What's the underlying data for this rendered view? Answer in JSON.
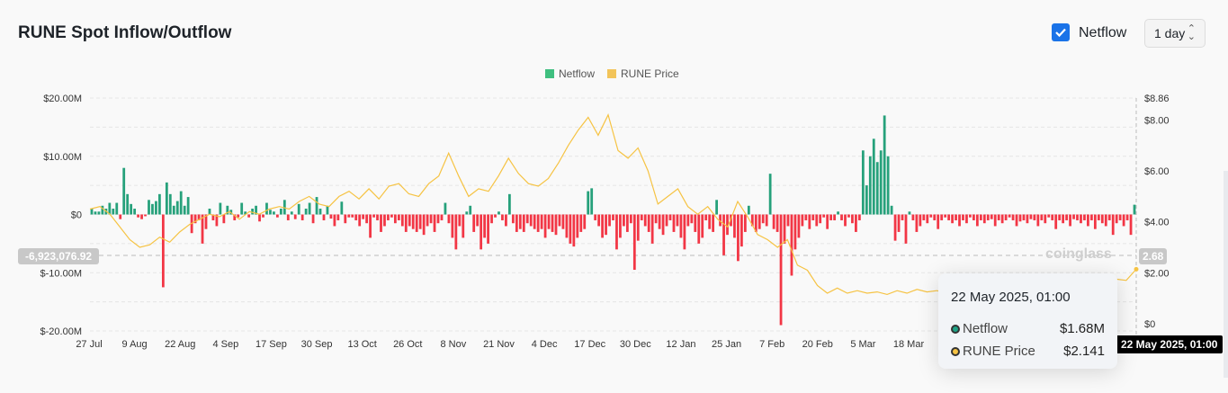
{
  "header": {
    "title": "RUNE Spot Inflow/Outflow",
    "netflow_checkbox_label": "Netflow",
    "interval": "1 day"
  },
  "watermark": "coinglass",
  "crosshair": {
    "left_value": "-6,923,076.92",
    "right_value": "2.68",
    "date_label": "22 May 2025, 01:00"
  },
  "tooltip": {
    "date": "22 May 2025, 01:00",
    "rows": [
      {
        "label": "Netflow",
        "value": "$1.68M",
        "color": "#1fa386"
      },
      {
        "label": "RUNE Price",
        "value": "$2.141",
        "color": "#f6c343"
      }
    ]
  },
  "chart_data": {
    "type": "bar+line",
    "title": "RUNE Spot Inflow/Outflow",
    "legend": [
      {
        "name": "Netflow",
        "color": "#3fbf7f"
      },
      {
        "name": "RUNE Price",
        "color": "#f2c45a"
      }
    ],
    "legend_position": "top-center",
    "x_ticks": [
      "27 Jul",
      "9 Aug",
      "22 Aug",
      "4 Sep",
      "17 Sep",
      "30 Sep",
      "13 Oct",
      "26 Oct",
      "8 Nov",
      "21 Nov",
      "4 Dec",
      "17 Dec",
      "30 Dec",
      "12 Jan",
      "25 Jan",
      "7 Feb",
      "20 Feb",
      "5 Mar",
      "18 Mar"
    ],
    "y_left": {
      "ticks": [
        "$20.00M",
        "$10.00M",
        "$0",
        "$-10.00M",
        "$-20.00M"
      ],
      "range": [
        -20,
        20
      ],
      "unit": "M USD"
    },
    "y_right": {
      "ticks": [
        "$8.86",
        "$8.00",
        "$6.00",
        "$4.00",
        "$2.00",
        "$0"
      ],
      "range": [
        0,
        8.86
      ],
      "unit": "USD"
    },
    "colors": {
      "positive": "#26a17b",
      "negative": "#f23645",
      "price": "#f6c343"
    },
    "netflow": [
      1,
      0.5,
      0.5,
      1.5,
      1,
      2,
      1,
      2,
      -0.8,
      8,
      3.5,
      1.8,
      1,
      -0.5,
      -0.8,
      -0.3,
      2.5,
      1.8,
      2.3,
      3.5,
      -12.5,
      5.5,
      3.5,
      1.5,
      2.3,
      4,
      1.5,
      3,
      -3.2,
      -1.5,
      -1,
      -5,
      -2.5,
      1,
      -1,
      -2,
      2,
      -1.5,
      1.5,
      0.8,
      -1,
      -0.5,
      2,
      0.5,
      -0.5,
      1,
      1.5,
      -1.2,
      -0.5,
      2,
      0.8,
      0.5,
      -0.5,
      1,
      2.5,
      -1,
      0.5,
      -0.8,
      1.8,
      -1,
      1,
      2,
      -1.5,
      3,
      1,
      -1,
      1.5,
      -0.7,
      -2,
      -1,
      2.2,
      -1.5,
      -0.5,
      -0.5,
      -1,
      -2,
      -0.8,
      -1.5,
      -4,
      -0.5,
      -1,
      -3,
      -2,
      -1,
      -0.5,
      -1.5,
      -1,
      -2,
      -3,
      -2,
      -2.5,
      -3,
      -2.5,
      -3.5,
      -2,
      -1.5,
      -3,
      -1.5,
      -1,
      2,
      -1.5,
      -4,
      -6,
      -2,
      -4,
      0.5,
      1.5,
      -3,
      -2,
      -6,
      -4,
      -5,
      -1.5,
      -0.5,
      0.5,
      -1,
      -2,
      3.5,
      -1.5,
      -3,
      -2.5,
      -3,
      -1.5,
      -2,
      -2.5,
      -3,
      -2.5,
      -4,
      -2.5,
      -3,
      -3.5,
      -2,
      -2.5,
      -4,
      -5,
      -5.5,
      -4,
      -3,
      -2.5,
      4,
      4.5,
      -1,
      -2,
      -4,
      -3.5,
      -2,
      -1,
      -6,
      -4,
      -2,
      -3,
      -1.5,
      -9.5,
      -4.5,
      -1,
      -2,
      -3,
      -5,
      -1.5,
      -2.5,
      -3.5,
      -2,
      -1,
      -3,
      -2,
      -4,
      -6,
      -2,
      -1.5,
      -3,
      -5,
      -4,
      -1,
      -2.5,
      -3,
      2.5,
      -2,
      -7,
      -3.5,
      -2,
      -4,
      -8,
      -5.5,
      -3,
      1.5,
      -2,
      -3,
      -2.5,
      -1.5,
      -2,
      7,
      -2.5,
      -3,
      -19,
      -5,
      -2,
      -10.5,
      -6,
      -4,
      -2,
      -1,
      -2.5,
      -1,
      -2,
      -1.5,
      -0.5,
      -2.5,
      -1,
      -1,
      0.5,
      -1,
      -2,
      -0.5,
      -1.5,
      -3,
      -1,
      11,
      5,
      10,
      13,
      9,
      11,
      17,
      10,
      1.5,
      -4.5,
      -3,
      -1,
      -5,
      0.5,
      -1,
      -3,
      -2,
      -1,
      -1.5,
      -0.5,
      -1,
      -2.5,
      -1,
      -0.5,
      -1,
      -1.5,
      -1,
      -2,
      -1,
      -1.5,
      -0.5,
      -1,
      -2,
      -1,
      -1.5,
      -1,
      -0.8,
      -2,
      -1,
      -1.5,
      -1,
      -0.5,
      -1,
      -2,
      -1.2,
      -1,
      -1.5,
      -0.8,
      -1,
      -2,
      -1,
      -1.5,
      -0.5,
      -1,
      -2.5,
      -1,
      -1.5,
      -1,
      -2,
      -0.8,
      -1,
      -1.5,
      -1,
      -2,
      -1,
      -2.5,
      -1,
      -1.5,
      -2,
      -1,
      -3.5,
      -1.5,
      -1,
      -2,
      -1,
      -3.5,
      1.68
    ],
    "price": [
      4.5,
      4.6,
      4.3,
      3.8,
      3.3,
      3.0,
      3.1,
      3.4,
      3.2,
      3.6,
      3.9,
      4.1,
      4.3,
      4.2,
      4.4,
      4.1,
      4.4,
      4.3,
      4.5,
      4.6,
      4.5,
      4.8,
      5.0,
      4.7,
      4.6,
      5.0,
      5.2,
      4.9,
      5.3,
      4.9,
      5.4,
      5.5,
      5.1,
      5.0,
      5.5,
      5.8,
      6.7,
      5.8,
      5.0,
      5.3,
      5.2,
      5.8,
      6.5,
      5.9,
      5.5,
      5.4,
      5.7,
      6.3,
      7.0,
      7.6,
      8.1,
      7.4,
      8.2,
      6.8,
      6.5,
      6.9,
      6.0,
      4.7,
      5.0,
      5.3,
      4.6,
      4.3,
      4.6,
      4.1,
      3.8,
      4.8,
      4.2,
      3.5,
      3.3,
      3.0,
      3.3,
      2.3,
      2.1,
      1.5,
      1.2,
      1.4,
      1.2,
      1.3,
      1.2,
      1.25,
      1.15,
      1.3,
      1.2,
      1.35,
      1.25,
      1.3,
      1.2,
      1.2,
      1.25,
      1.15,
      1.3,
      1.25,
      1.2,
      1.3,
      1.25,
      1.2,
      1.35,
      1.3,
      1.4,
      1.3,
      1.45,
      1.5,
      1.6,
      1.75,
      1.7,
      2.14
    ]
  }
}
